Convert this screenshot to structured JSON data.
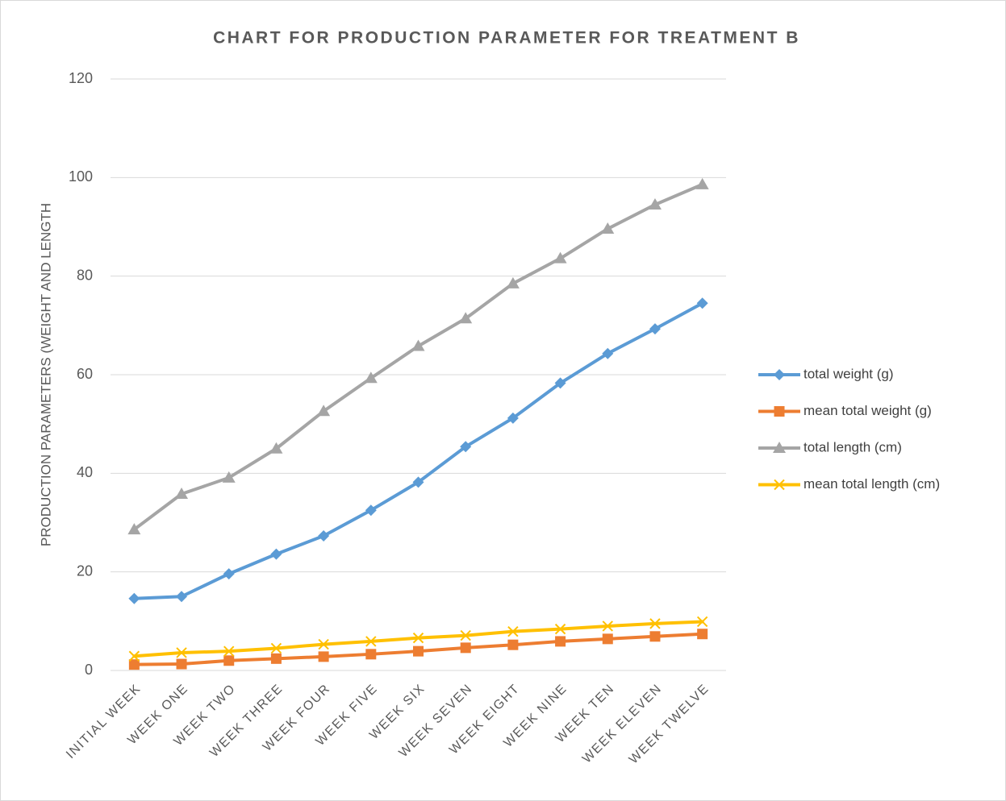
{
  "chart_data": {
    "type": "line",
    "title": "CHART FOR PRODUCTION PARAMETER FOR TREATMENT B",
    "y_label": "PRODUCTION PARAMETERS (WEIGHT AND LENGTH",
    "categories": [
      "INITIAL WEEK",
      "WEEK ONE",
      "WEEK TWO",
      "WEEK THREE",
      "WEEK FOUR",
      "WEEK FIVE",
      "WEEK SIX",
      "WEEK SEVEN",
      "WEEK EIGHT",
      "WEEK NINE",
      "WEEK TEN",
      "WEEK ELEVEN",
      "WEEK TWELVE"
    ],
    "series": [
      {
        "name": "total weight (g)",
        "color": "#5b9bd5",
        "marker": "diamond",
        "values": [
          14.6,
          15.0,
          19.6,
          23.6,
          27.3,
          32.5,
          38.2,
          45.4,
          51.2,
          58.3,
          64.3,
          69.3,
          74.5
        ]
      },
      {
        "name": "mean total  weight (g)",
        "color": "#ed7d31",
        "marker": "square",
        "values": [
          1.2,
          1.3,
          2.0,
          2.4,
          2.8,
          3.3,
          3.9,
          4.6,
          5.2,
          5.9,
          6.4,
          6.9,
          7.4
        ]
      },
      {
        "name": "total length (cm)",
        "color": "#a5a5a5",
        "marker": "triangle",
        "values": [
          28.6,
          35.8,
          39.1,
          45.0,
          52.6,
          59.3,
          65.8,
          71.4,
          78.5,
          83.6,
          89.6,
          94.5,
          98.6
        ]
      },
      {
        "name": "mean total length (cm)",
        "color": "#ffc000",
        "marker": "x",
        "values": [
          2.9,
          3.6,
          3.9,
          4.5,
          5.3,
          5.9,
          6.6,
          7.1,
          7.9,
          8.4,
          9.0,
          9.5,
          9.9
        ]
      }
    ],
    "ylim": [
      0,
      120
    ],
    "yticks": [
      0,
      20,
      40,
      60,
      80,
      100,
      120
    ],
    "grid": true,
    "legend": "right"
  }
}
